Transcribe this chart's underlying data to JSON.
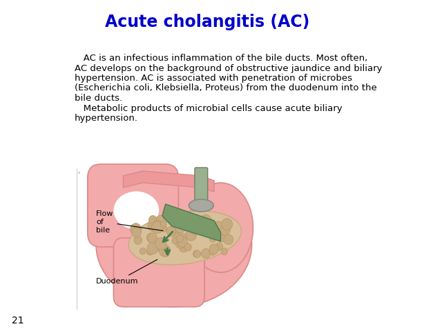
{
  "title": "Acute cholangitis (AC)",
  "title_color": "#0000CC",
  "title_fontsize": 17,
  "body_text_lines": [
    "   AC is an infectious inflammation of the bile ducts. Most often,",
    "AC develops on the background of obstructive jaundice and biliary",
    "hypertension. AC is associated with penetration of microbes",
    "(Escherichia coli, Klebsiella, Proteus) from the duodenum into the",
    "bile ducts.",
    "   Metabolic products of microbial cells cause acute biliary",
    "hypertension."
  ],
  "body_fontsize": 9.5,
  "body_color": "#000000",
  "page_number": "21",
  "background_color": "#ffffff",
  "label_flow_bile": "Flow\nof\nbile",
  "label_duodenum": "Duodenum",
  "pink_light": "#F2AAAA",
  "pink_mid": "#EE9999",
  "pink_dark": "#DC8888",
  "tan_light": "#D8C09A",
  "tan_mid": "#C8AA80",
  "green_bile": "#7A9A6A",
  "green_dark": "#4A7A4A",
  "gray_band": "#A8A8A0",
  "gray_tube": "#9AB090"
}
